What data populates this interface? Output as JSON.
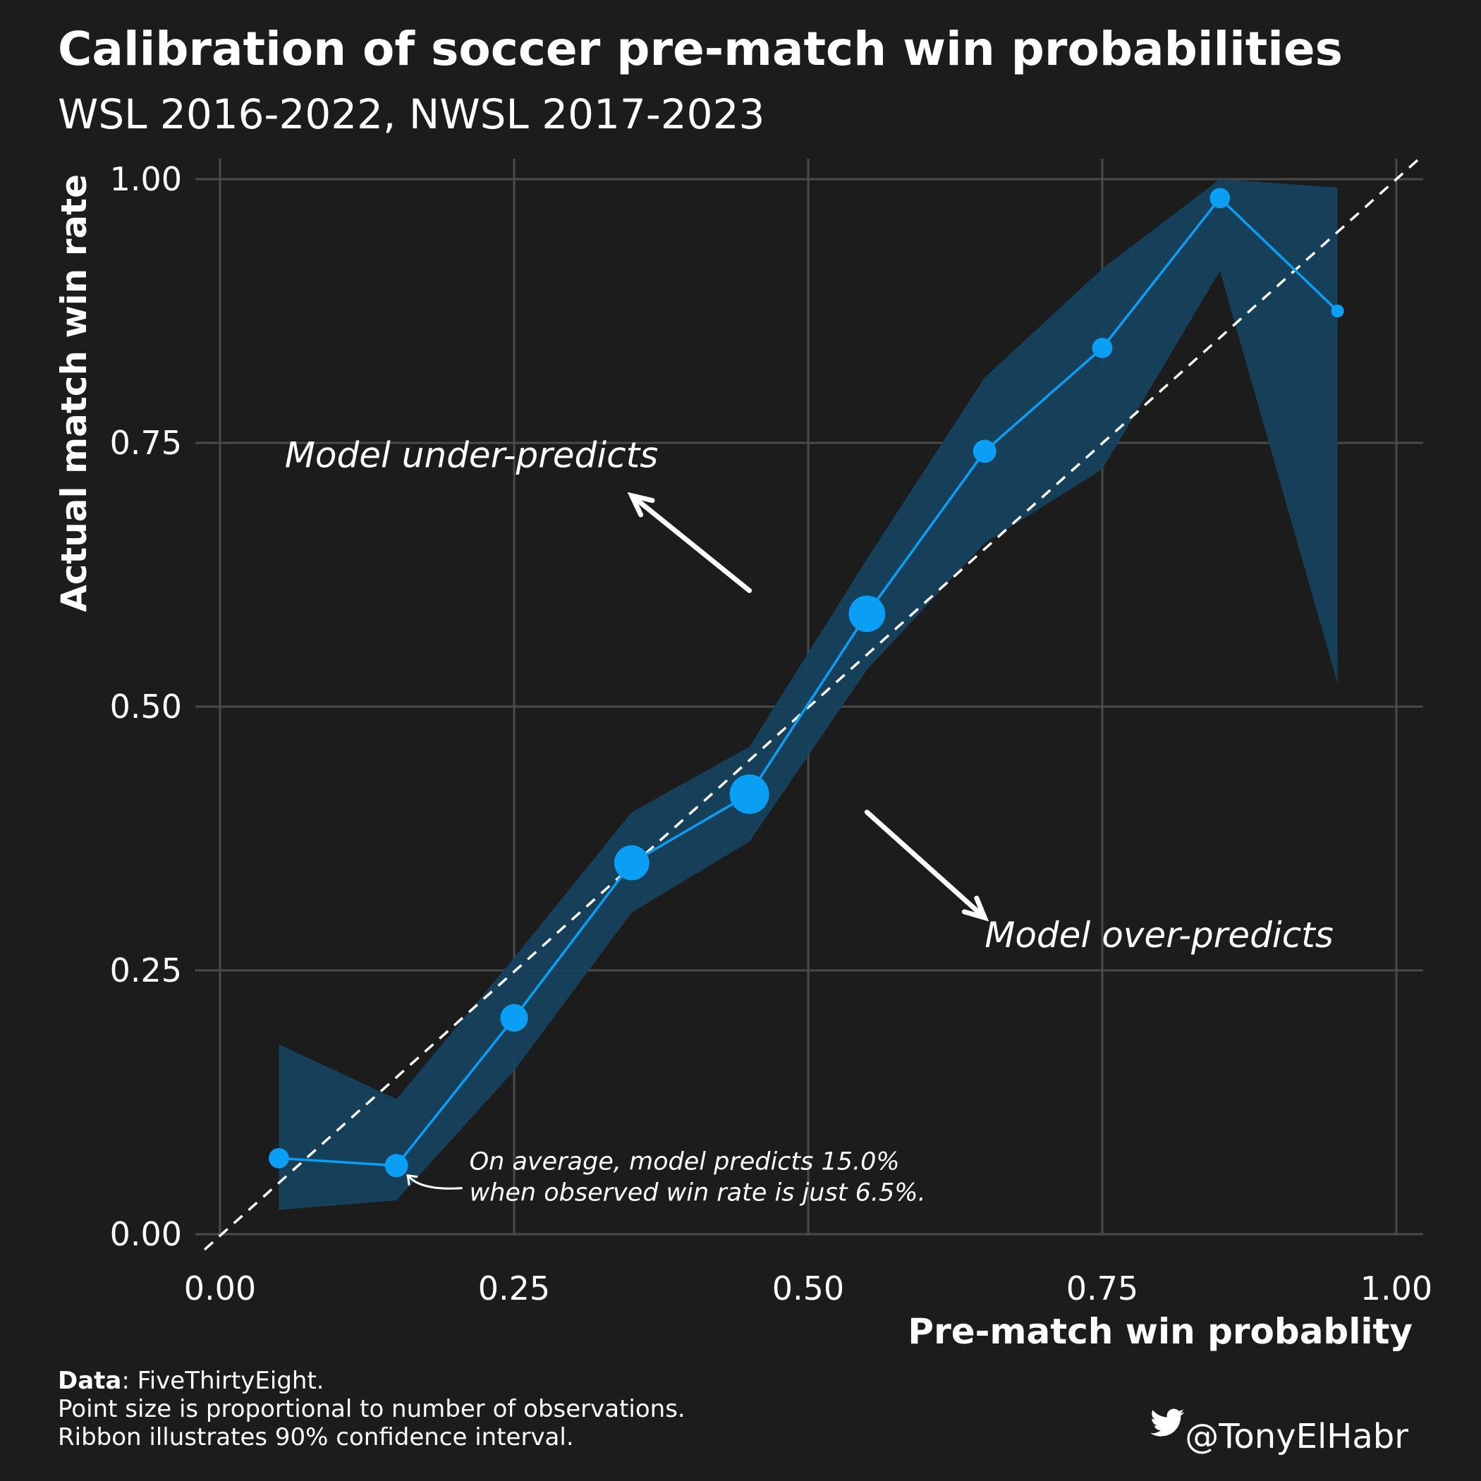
{
  "title": "Calibration of soccer pre-match win probabilities",
  "subtitle": "WSL 2016-2022, NWSL 2017-2023",
  "chart_data": {
    "type": "line",
    "title": "Calibration of soccer pre-match win probabilities",
    "subtitle": "WSL 2016-2022, NWSL 2017-2023",
    "xlabel": "Pre-match win probablity",
    "ylabel": "Actual match win rate",
    "xlim": [
      0,
      1
    ],
    "ylim": [
      0,
      1
    ],
    "x_ticks": [
      "0.00",
      "0.25",
      "0.50",
      "0.75",
      "1.00"
    ],
    "y_ticks": [
      "0.00",
      "0.25",
      "0.50",
      "0.75",
      "1.00"
    ],
    "grid": true,
    "reference_line": {
      "from": [
        0,
        0
      ],
      "to": [
        1.02,
        1.02
      ],
      "style": "dashed",
      "color": "#ffffff"
    },
    "series": [
      {
        "color": "#0a9ef5",
        "ribbon_color": "#16425e",
        "points": [
          {
            "x": 0.05,
            "y": 0.072,
            "lower": 0.023,
            "upper": 0.18,
            "size": 0.35
          },
          {
            "x": 0.15,
            "y": 0.065,
            "lower": 0.032,
            "upper": 0.128,
            "size": 0.45
          },
          {
            "x": 0.25,
            "y": 0.205,
            "lower": 0.155,
            "upper": 0.262,
            "size": 0.6
          },
          {
            "x": 0.35,
            "y": 0.352,
            "lower": 0.305,
            "upper": 0.4,
            "size": 0.85
          },
          {
            "x": 0.45,
            "y": 0.417,
            "lower": 0.372,
            "upper": 0.462,
            "size": 1.0
          },
          {
            "x": 0.55,
            "y": 0.588,
            "lower": 0.535,
            "upper": 0.64,
            "size": 0.9
          },
          {
            "x": 0.65,
            "y": 0.742,
            "lower": 0.655,
            "upper": 0.812,
            "size": 0.45
          },
          {
            "x": 0.75,
            "y": 0.84,
            "lower": 0.725,
            "upper": 0.915,
            "size": 0.35
          },
          {
            "x": 0.85,
            "y": 0.982,
            "lower": 0.913,
            "upper": 1.0,
            "size": 0.35
          },
          {
            "x": 0.95,
            "y": 0.875,
            "lower": 0.522,
            "upper": 0.992,
            "size": 0.1
          }
        ]
      }
    ],
    "annotations": [
      {
        "text": "Model under-predicts",
        "x": 0.055,
        "y": 0.727
      },
      {
        "text": "Model over-predicts",
        "x": 0.65,
        "y": 0.272
      },
      {
        "line1": "On average, model predicts 15.0%",
        "line2": "when observed win rate is  just 6.5%.",
        "x": 0.2,
        "y": 0.045
      }
    ],
    "arrows": [
      {
        "from": [
          0.45,
          0.61
        ],
        "to": [
          0.35,
          0.7
        ]
      },
      {
        "from": [
          0.55,
          0.4
        ],
        "to": [
          0.65,
          0.3
        ]
      }
    ]
  },
  "caption": {
    "data_label": "Data",
    "data_source": ": FiveThirtyEight.",
    "line2": "Point size is proportional to number of observations.",
    "line3": "Ribbon illustrates 90% confidence interval."
  },
  "credit": {
    "icon": "twitter-bird-icon",
    "handle": "@TonyElHabr"
  },
  "colors": {
    "background": "#1c1c1c",
    "grid": "#4a4a4a",
    "line": "#0a9ef5",
    "ribbon": "#16425e",
    "text": "#ffffff"
  }
}
